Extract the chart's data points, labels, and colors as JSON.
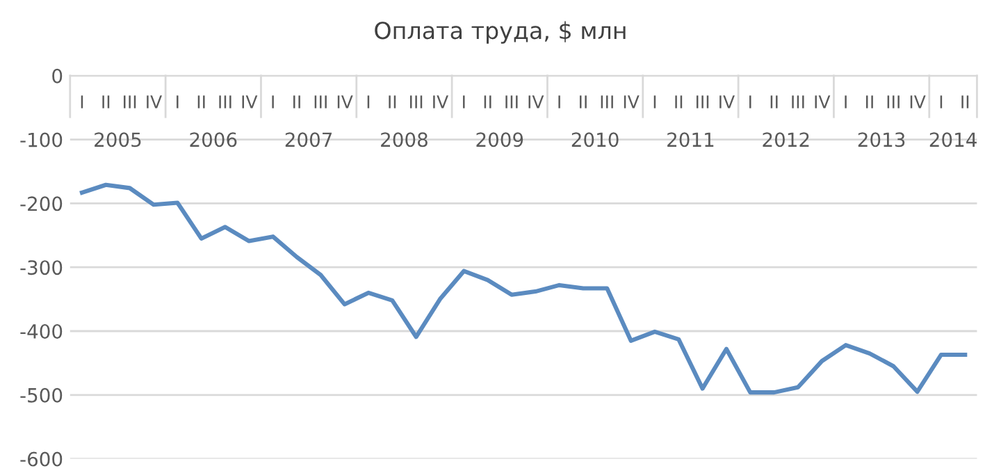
{
  "chart_data": {
    "type": "line",
    "title": "Оплата труда, $ млн",
    "categories": [
      "I",
      "II",
      "III",
      "IV",
      "I",
      "II",
      "III",
      "IV",
      "I",
      "II",
      "III",
      "IV",
      "I",
      "II",
      "III",
      "IV",
      "I",
      "II",
      "III",
      "IV",
      "I",
      "II",
      "III",
      "IV",
      "I",
      "II",
      "III",
      "IV",
      "I",
      "II",
      "III",
      "IV",
      "I",
      "II",
      "III",
      "IV",
      "I",
      "II"
    ],
    "annotations": [
      "2005",
      "2006",
      "2007",
      "2008",
      "2009",
      "2010",
      "2011",
      "2012",
      "2013",
      "2014"
    ],
    "series": [
      {
        "color": "#5b8bc0",
        "values": [
          -183,
          -171,
          -176,
          -202,
          -199,
          -255,
          -237,
          -259,
          -252,
          -284,
          -312,
          -358,
          -340,
          -352,
          -409,
          -350,
          -306,
          -320,
          -343,
          -338,
          -328,
          -333,
          -333,
          -415,
          -401,
          -413,
          -490,
          -428,
          -496,
          -496,
          -488,
          -447,
          -422,
          -435,
          -455,
          -495,
          -437,
          -437
        ]
      }
    ],
    "ylim": [
      -600,
      0
    ],
    "yticks": [
      -600,
      -500,
      -400,
      -300,
      -200,
      -100,
      0
    ],
    "grid": "y",
    "marker": "none",
    "line_style": "solid"
  }
}
